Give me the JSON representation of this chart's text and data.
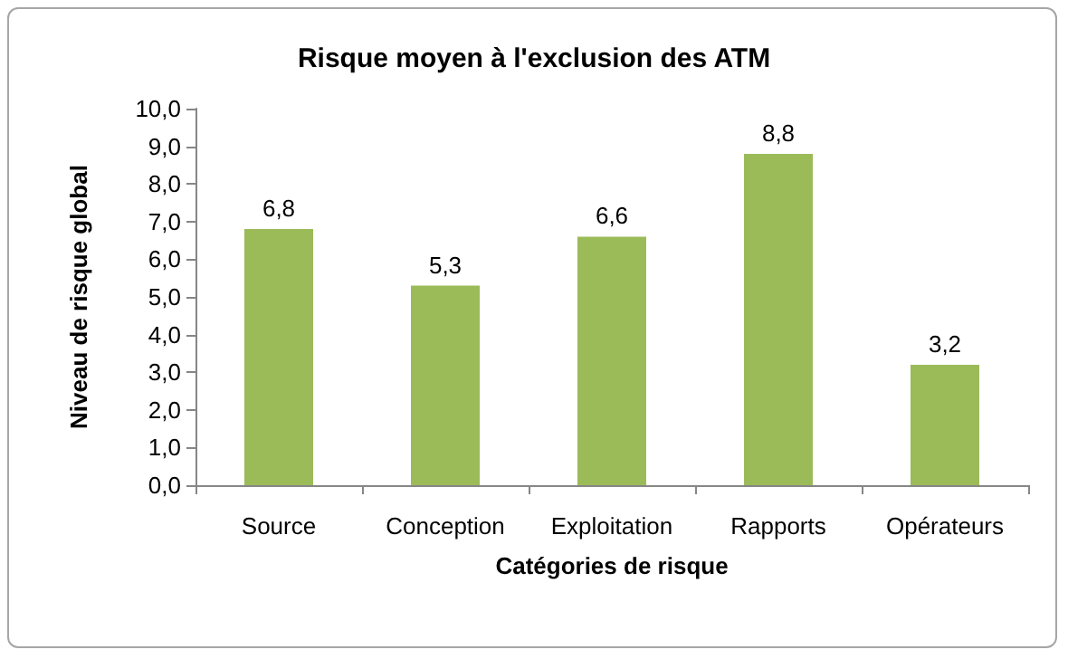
{
  "chart_data": {
    "type": "bar",
    "title": "Risque moyen à l'exclusion des ATM",
    "xlabel": "Catégories de risque",
    "ylabel": "Niveau de risque global",
    "categories": [
      "Source",
      "Conception",
      "Exploitation",
      "Rapports",
      "Opérateurs"
    ],
    "series": [
      {
        "color": "#9bbb59",
        "values": [
          6.8,
          5.3,
          6.6,
          8.8,
          3.2
        ],
        "value_labels": [
          "6,8",
          "5,3",
          "6,6",
          "8,8",
          "3,2"
        ]
      }
    ],
    "ylim": [
      0,
      10
    ],
    "yticks": [
      {
        "value": 0,
        "label": "0,0"
      },
      {
        "value": 1,
        "label": "1,0"
      },
      {
        "value": 2,
        "label": "2,0"
      },
      {
        "value": 3,
        "label": "3,0"
      },
      {
        "value": 4,
        "label": "4,0"
      },
      {
        "value": 5,
        "label": "5,0"
      },
      {
        "value": 6,
        "label": "6,0"
      },
      {
        "value": 7,
        "label": "7,0"
      },
      {
        "value": 8,
        "label": "8,0"
      },
      {
        "value": 9,
        "label": "9,0"
      },
      {
        "value": 10,
        "label": "10,0"
      }
    ],
    "grid": false
  }
}
